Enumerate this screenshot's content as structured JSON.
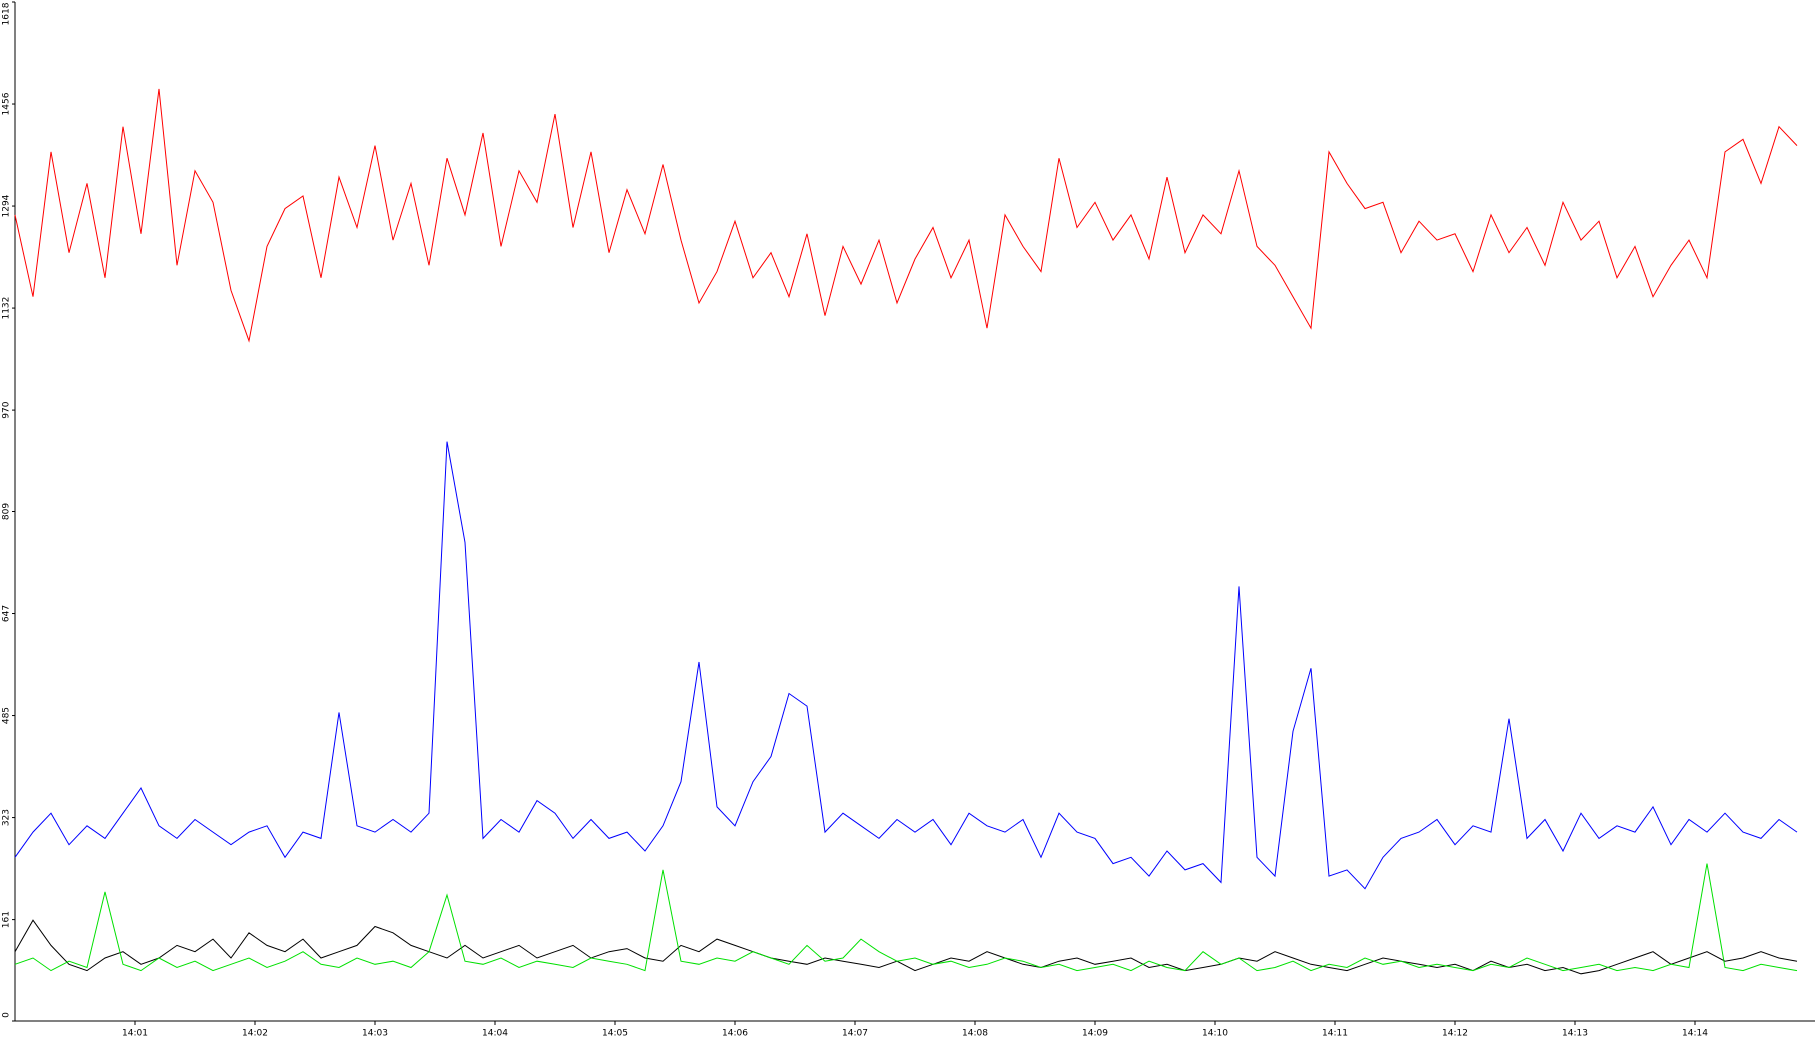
{
  "chart_data": {
    "type": "line",
    "x": [
      0,
      0.15,
      0.3,
      0.45,
      0.6,
      0.75,
      0.9,
      1.05,
      1.2,
      1.35,
      1.5,
      1.65,
      1.8,
      1.95,
      2.1,
      2.25,
      2.4,
      2.55,
      2.7,
      2.85,
      3,
      3.15,
      3.3,
      3.45,
      3.6,
      3.75,
      3.9,
      4.05,
      4.2,
      4.35,
      4.5,
      4.65,
      4.8,
      4.95,
      5.1,
      5.25,
      5.4,
      5.55,
      5.7,
      5.85,
      6,
      6.15,
      6.3,
      6.45,
      6.6,
      6.75,
      6.9,
      7.05,
      7.2,
      7.35,
      7.5,
      7.65,
      7.8,
      7.95,
      8.1,
      8.25,
      8.4,
      8.55,
      8.7,
      8.85,
      9,
      9.15,
      9.3,
      9.45,
      9.6,
      9.75,
      9.9,
      10.05,
      10.2,
      10.35,
      10.5,
      10.65,
      10.8,
      10.95,
      11.1,
      11.25,
      11.4,
      11.55,
      11.7,
      11.85,
      12,
      12.15,
      12.3,
      12.45,
      12.6,
      12.75,
      12.9,
      13.05,
      13.2,
      13.35,
      13.5,
      13.65,
      13.8,
      13.95,
      14.1,
      14.25,
      14.4,
      14.55,
      14.7,
      14.85
    ],
    "series": [
      {
        "color": "#ff0000",
        "values": [
          1280,
          1150,
          1380,
          1220,
          1330,
          1180,
          1420,
          1250,
          1480,
          1200,
          1350,
          1300,
          1160,
          1080,
          1230,
          1290,
          1310,
          1180,
          1340,
          1260,
          1390,
          1240,
          1330,
          1200,
          1370,
          1280,
          1410,
          1230,
          1350,
          1300,
          1440,
          1260,
          1380,
          1220,
          1320,
          1250,
          1360,
          1240,
          1140,
          1190,
          1270,
          1180,
          1220,
          1150,
          1250,
          1120,
          1230,
          1170,
          1240,
          1140,
          1210,
          1260,
          1180,
          1240,
          1100,
          1280,
          1230,
          1190,
          1370,
          1260,
          1300,
          1240,
          1280,
          1210,
          1340,
          1220,
          1280,
          1250,
          1350,
          1230,
          1200,
          1150,
          1100,
          1380,
          1330,
          1290,
          1300,
          1220,
          1270,
          1240,
          1250,
          1190,
          1280,
          1220,
          1260,
          1200,
          1300,
          1240,
          1270,
          1180,
          1230,
          1150,
          1200,
          1240,
          1180,
          1380,
          1400,
          1330,
          1420,
          1390
        ]
      },
      {
        "color": "#0000ff",
        "values": [
          260,
          300,
          330,
          280,
          310,
          290,
          330,
          370,
          310,
          290,
          320,
          300,
          280,
          300,
          310,
          260,
          300,
          290,
          490,
          310,
          300,
          320,
          300,
          330,
          920,
          760,
          290,
          320,
          300,
          350,
          330,
          290,
          320,
          290,
          300,
          270,
          310,
          380,
          570,
          340,
          310,
          380,
          420,
          520,
          500,
          300,
          330,
          310,
          290,
          320,
          300,
          320,
          280,
          330,
          310,
          300,
          320,
          260,
          330,
          300,
          290,
          250,
          260,
          230,
          270,
          240,
          250,
          220,
          690,
          260,
          230,
          460,
          560,
          230,
          240,
          210,
          260,
          290,
          300,
          320,
          280,
          310,
          300,
          480,
          290,
          320,
          270,
          330,
          290,
          310,
          300,
          340,
          280,
          320,
          300,
          330,
          300,
          290,
          320,
          300
        ]
      },
      {
        "color": "#000000",
        "values": [
          110,
          160,
          120,
          90,
          80,
          100,
          110,
          90,
          100,
          120,
          110,
          130,
          100,
          140,
          120,
          110,
          130,
          100,
          110,
          120,
          150,
          140,
          120,
          110,
          100,
          120,
          100,
          110,
          120,
          100,
          110,
          120,
          100,
          110,
          115,
          100,
          95,
          120,
          110,
          130,
          120,
          110,
          100,
          95,
          90,
          100,
          95,
          90,
          85,
          95,
          80,
          90,
          100,
          95,
          110,
          100,
          90,
          85,
          95,
          100,
          90,
          95,
          100,
          85,
          90,
          80,
          85,
          90,
          100,
          95,
          110,
          100,
          90,
          85,
          80,
          90,
          100,
          95,
          90,
          85,
          90,
          80,
          95,
          85,
          90,
          80,
          85,
          75,
          80,
          90,
          100,
          110,
          90,
          100,
          110,
          95,
          100,
          110,
          100,
          95
        ]
      },
      {
        "color": "#00e000",
        "values": [
          90,
          100,
          80,
          95,
          85,
          205,
          90,
          80,
          100,
          85,
          95,
          80,
          90,
          100,
          85,
          95,
          110,
          90,
          85,
          100,
          90,
          95,
          85,
          110,
          200,
          95,
          90,
          100,
          85,
          95,
          90,
          85,
          100,
          95,
          90,
          80,
          240,
          95,
          90,
          100,
          95,
          110,
          100,
          90,
          120,
          95,
          100,
          130,
          110,
          95,
          100,
          90,
          95,
          85,
          90,
          100,
          95,
          85,
          90,
          80,
          85,
          90,
          80,
          95,
          85,
          80,
          110,
          90,
          100,
          80,
          85,
          95,
          80,
          90,
          85,
          100,
          90,
          95,
          85,
          90,
          85,
          80,
          90,
          85,
          100,
          90,
          80,
          85,
          90,
          80,
          85,
          80,
          90,
          85,
          250,
          85,
          80,
          90,
          85,
          80
        ]
      }
    ],
    "xlim": [
      0,
      15
    ],
    "xticks": [
      {
        "value": 1,
        "label": "14:01"
      },
      {
        "value": 2,
        "label": "14:02"
      },
      {
        "value": 3,
        "label": "14:03"
      },
      {
        "value": 4,
        "label": "14:04"
      },
      {
        "value": 5,
        "label": "14:05"
      },
      {
        "value": 6,
        "label": "14:06"
      },
      {
        "value": 7,
        "label": "14:07"
      },
      {
        "value": 8,
        "label": "14:08"
      },
      {
        "value": 9,
        "label": "14:09"
      },
      {
        "value": 10,
        "label": "14:10"
      },
      {
        "value": 11,
        "label": "14:11"
      },
      {
        "value": 12,
        "label": "14:12"
      },
      {
        "value": 13,
        "label": "14:13"
      },
      {
        "value": 14,
        "label": "14:14"
      }
    ],
    "ylim": [
      0,
      1618
    ],
    "yticks": [
      0,
      161,
      323,
      485,
      647,
      809,
      970,
      1132,
      1294,
      1456,
      1618
    ]
  }
}
